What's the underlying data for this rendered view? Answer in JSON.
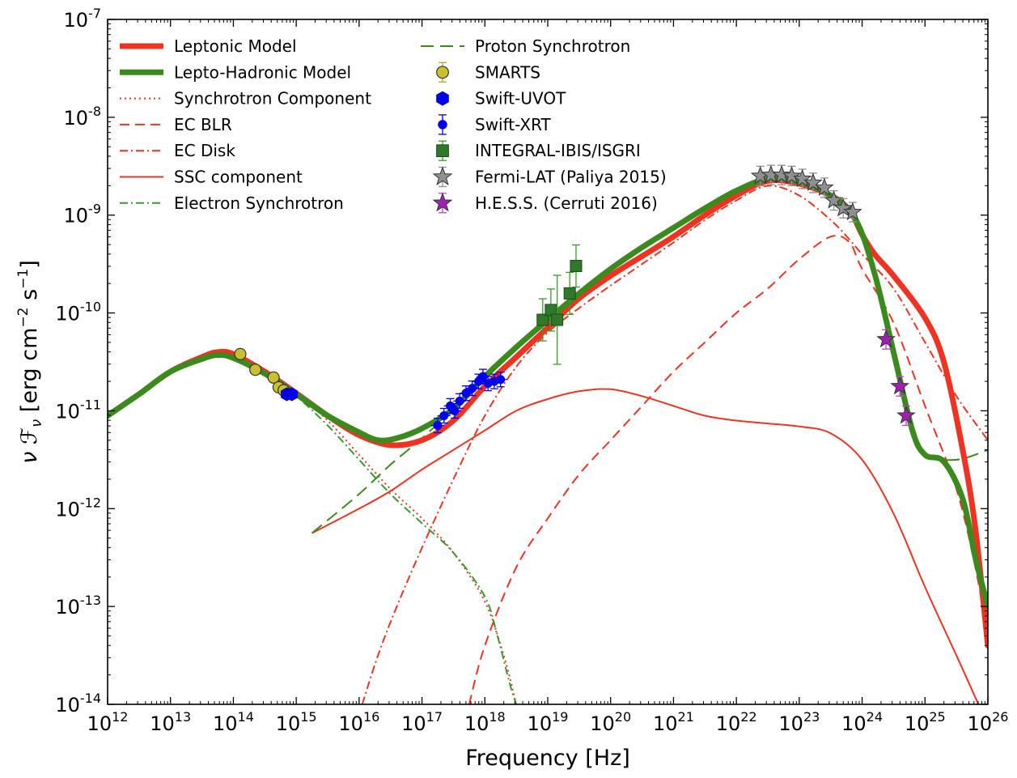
{
  "chart_data": {
    "type": "line",
    "title": "",
    "xlabel": "Frequency [Hz]",
    "ylabel": "ν ℱ_ν [erg cm⁻² s⁻¹]",
    "ylabel_parts": {
      "prefix": "ν ℱ",
      "sub": "ν",
      "unit_open": " [erg cm",
      "exp1": "−2",
      "unit_mid": " s",
      "exp2": "−1",
      "unit_close": "]"
    },
    "xscale": "log",
    "yscale": "log",
    "xlim_log10": [
      12,
      26
    ],
    "ylim_log10": [
      -14,
      -7
    ],
    "x_ticks": [
      12,
      13,
      14,
      15,
      16,
      17,
      18,
      19,
      20,
      21,
      22,
      23,
      24,
      25,
      26
    ],
    "y_ticks": [
      -14,
      -13,
      -12,
      -11,
      -10,
      -9,
      -8,
      -7
    ],
    "grid": false,
    "legend": {
      "location": "upper-left",
      "columns": [
        [
          "Leptonic Model",
          "Lepto-Hadronic Model",
          "Synchrotron Component",
          "EC BLR",
          "EC Disk",
          "SSC component",
          "Electron Synchrotron"
        ],
        [
          "Proton Synchrotron",
          "SMARTS",
          "Swift-UVOT",
          "Swift-XRT",
          "INTEGRAL-IBIS/ISGRI",
          "Fermi-LAT (Paliya 2015)",
          "H.E.S.S. (Cerruti 2016)"
        ]
      ]
    },
    "series": [
      {
        "name": "Leptonic Model",
        "color": "#ee3322",
        "style": "solid",
        "width": 7,
        "points": [
          [
            12,
            -11.05
          ],
          [
            12.5,
            -10.83
          ],
          [
            13,
            -10.6
          ],
          [
            13.5,
            -10.45
          ],
          [
            13.75,
            -10.4
          ],
          [
            14,
            -10.42
          ],
          [
            14.5,
            -10.6
          ],
          [
            15,
            -10.82
          ],
          [
            15.5,
            -11.05
          ],
          [
            16,
            -11.25
          ],
          [
            16.5,
            -11.35
          ],
          [
            17,
            -11.3
          ],
          [
            17.5,
            -11.1
          ],
          [
            18,
            -10.75
          ],
          [
            18.5,
            -10.45
          ],
          [
            19,
            -10.15
          ],
          [
            19.5,
            -9.85
          ],
          [
            20,
            -9.62
          ],
          [
            20.5,
            -9.42
          ],
          [
            21,
            -9.22
          ],
          [
            21.5,
            -9.0
          ],
          [
            22,
            -8.8
          ],
          [
            22.5,
            -8.65
          ],
          [
            23,
            -8.68
          ],
          [
            23.5,
            -8.8
          ],
          [
            23.8,
            -8.95
          ],
          [
            24,
            -9.2
          ],
          [
            24.2,
            -9.4
          ],
          [
            24.5,
            -9.62
          ],
          [
            25,
            -10.05
          ],
          [
            25.3,
            -10.5
          ],
          [
            25.6,
            -11.4
          ],
          [
            25.8,
            -12.2
          ],
          [
            26,
            -13.4
          ]
        ]
      },
      {
        "name": "Lepto-Hadronic Model",
        "color": "#3a8a1e",
        "style": "solid",
        "width": 7,
        "points": [
          [
            12,
            -11.05
          ],
          [
            12.5,
            -10.83
          ],
          [
            13,
            -10.6
          ],
          [
            13.5,
            -10.47
          ],
          [
            13.75,
            -10.43
          ],
          [
            14,
            -10.46
          ],
          [
            14.5,
            -10.62
          ],
          [
            15,
            -10.83
          ],
          [
            15.5,
            -11.05
          ],
          [
            16,
            -11.22
          ],
          [
            16.3,
            -11.3
          ],
          [
            16.6,
            -11.28
          ],
          [
            17,
            -11.18
          ],
          [
            17.5,
            -10.98
          ],
          [
            18,
            -10.65
          ],
          [
            18.5,
            -10.35
          ],
          [
            19,
            -10.07
          ],
          [
            19.5,
            -9.8
          ],
          [
            20,
            -9.55
          ],
          [
            20.5,
            -9.33
          ],
          [
            21,
            -9.13
          ],
          [
            21.5,
            -8.93
          ],
          [
            22,
            -8.75
          ],
          [
            22.5,
            -8.63
          ],
          [
            23,
            -8.66
          ],
          [
            23.5,
            -8.8
          ],
          [
            23.9,
            -9.05
          ],
          [
            24.2,
            -9.6
          ],
          [
            24.5,
            -10.4
          ],
          [
            24.8,
            -11.2
          ],
          [
            25,
            -11.45
          ],
          [
            25.3,
            -11.52
          ],
          [
            25.6,
            -11.9
          ],
          [
            25.8,
            -12.5
          ],
          [
            26,
            -13.0
          ]
        ]
      },
      {
        "name": "Synchrotron Component",
        "color": "#ee3322",
        "style": "dotted",
        "width": 2,
        "points": [
          [
            12,
            -11.05
          ],
          [
            12.5,
            -10.83
          ],
          [
            13,
            -10.6
          ],
          [
            13.5,
            -10.45
          ],
          [
            13.75,
            -10.4
          ],
          [
            14,
            -10.42
          ],
          [
            14.5,
            -10.6
          ],
          [
            15,
            -10.82
          ],
          [
            15.5,
            -11.1
          ],
          [
            16,
            -11.45
          ],
          [
            16.5,
            -11.8
          ],
          [
            17,
            -12.1
          ],
          [
            17.5,
            -12.45
          ],
          [
            18,
            -12.95
          ],
          [
            18.3,
            -13.5
          ],
          [
            18.5,
            -14.0
          ]
        ]
      },
      {
        "name": "EC BLR",
        "color": "#ee3322",
        "style": "dashed",
        "width": 2,
        "points": [
          [
            17.75,
            -14.0
          ],
          [
            18,
            -13.4
          ],
          [
            18.5,
            -12.6
          ],
          [
            19,
            -12.1
          ],
          [
            19.5,
            -11.65
          ],
          [
            20,
            -11.3
          ],
          [
            20.5,
            -10.95
          ],
          [
            21,
            -10.6
          ],
          [
            21.5,
            -10.3
          ],
          [
            22,
            -10.0
          ],
          [
            22.5,
            -9.75
          ],
          [
            23,
            -9.45
          ],
          [
            23.5,
            -9.22
          ],
          [
            23.8,
            -9.28
          ],
          [
            24,
            -9.55
          ],
          [
            24.5,
            -10.1
          ],
          [
            25,
            -10.95
          ],
          [
            25.5,
            -11.8
          ],
          [
            25.8,
            -12.6
          ],
          [
            26,
            -13.3
          ]
        ]
      },
      {
        "name": "EC Disk",
        "color": "#ee3322",
        "style": "dashdot",
        "width": 2,
        "points": [
          [
            16.05,
            -14.0
          ],
          [
            16.3,
            -13.5
          ],
          [
            16.6,
            -13.0
          ],
          [
            17,
            -12.4
          ],
          [
            17.5,
            -11.7
          ],
          [
            18,
            -11.05
          ],
          [
            18.5,
            -10.55
          ],
          [
            19,
            -10.2
          ],
          [
            19.5,
            -9.95
          ],
          [
            20,
            -9.72
          ],
          [
            20.5,
            -9.5
          ],
          [
            21,
            -9.28
          ],
          [
            21.5,
            -9.05
          ],
          [
            22,
            -8.85
          ],
          [
            22.5,
            -8.7
          ],
          [
            23,
            -8.8
          ],
          [
            23.5,
            -9.05
          ],
          [
            23.8,
            -9.25
          ],
          [
            24,
            -9.4
          ],
          [
            24.5,
            -9.75
          ],
          [
            25,
            -10.3
          ],
          [
            25.5,
            -10.85
          ],
          [
            26,
            -11.3
          ]
        ]
      },
      {
        "name": "SSC component",
        "color": "#ee3322",
        "style": "solid",
        "width": 2,
        "points": [
          [
            15.25,
            -12.25
          ],
          [
            16,
            -12.0
          ],
          [
            16.5,
            -11.82
          ],
          [
            17,
            -11.6
          ],
          [
            17.5,
            -11.4
          ],
          [
            18,
            -11.2
          ],
          [
            18.5,
            -11.0
          ],
          [
            19,
            -10.88
          ],
          [
            19.5,
            -10.8
          ],
          [
            20,
            -10.78
          ],
          [
            20.5,
            -10.85
          ],
          [
            21,
            -10.95
          ],
          [
            21.5,
            -11.05
          ],
          [
            22,
            -11.1
          ],
          [
            22.5,
            -11.13
          ],
          [
            23,
            -11.16
          ],
          [
            23.5,
            -11.23
          ],
          [
            24,
            -11.5
          ],
          [
            24.5,
            -12.05
          ],
          [
            25,
            -12.8
          ],
          [
            25.5,
            -13.5
          ],
          [
            25.85,
            -14.0
          ]
        ]
      },
      {
        "name": "Electron Synchrotron",
        "color": "#3a9a2e",
        "style": "dashdot",
        "width": 2,
        "points": [
          [
            12,
            -11.05
          ],
          [
            12.5,
            -10.83
          ],
          [
            13,
            -10.6
          ],
          [
            13.5,
            -10.47
          ],
          [
            13.75,
            -10.43
          ],
          [
            14,
            -10.46
          ],
          [
            14.5,
            -10.62
          ],
          [
            15,
            -10.85
          ],
          [
            15.5,
            -11.15
          ],
          [
            16,
            -11.5
          ],
          [
            16.5,
            -11.85
          ],
          [
            17,
            -12.15
          ],
          [
            17.5,
            -12.45
          ],
          [
            18,
            -12.9
          ],
          [
            18.2,
            -13.3
          ],
          [
            18.4,
            -13.8
          ],
          [
            18.5,
            -14.0
          ]
        ]
      },
      {
        "name": "Proton Synchrotron",
        "color": "#3a8a1e",
        "style": "longdash",
        "width": 2,
        "points": [
          [
            15.25,
            -12.25
          ],
          [
            16,
            -11.85
          ],
          [
            16.5,
            -11.55
          ],
          [
            17,
            -11.28
          ],
          [
            17.5,
            -10.98
          ],
          [
            18,
            -10.65
          ],
          [
            18.5,
            -10.35
          ],
          [
            19,
            -10.07
          ],
          [
            19.5,
            -9.8
          ],
          [
            20,
            -9.55
          ],
          [
            20.5,
            -9.33
          ],
          [
            21,
            -9.13
          ],
          [
            21.5,
            -8.93
          ],
          [
            22,
            -8.75
          ],
          [
            22.5,
            -8.63
          ],
          [
            23,
            -8.66
          ],
          [
            23.5,
            -8.8
          ],
          [
            23.9,
            -9.05
          ],
          [
            24.2,
            -9.6
          ],
          [
            24.5,
            -10.4
          ],
          [
            24.8,
            -11.2
          ],
          [
            25,
            -11.45
          ],
          [
            25.5,
            -11.5
          ],
          [
            26,
            -11.4
          ]
        ]
      }
    ],
    "data_sets": [
      {
        "name": "SMARTS",
        "marker": "circle",
        "color": "#c8c030",
        "points": [
          [
            14.11,
            -10.42
          ],
          [
            14.35,
            -10.58
          ],
          [
            14.64,
            -10.66
          ],
          [
            14.72,
            -10.76
          ],
          [
            14.8,
            -10.79
          ]
        ]
      },
      {
        "name": "Swift-UVOT",
        "marker": "hexagon",
        "color": "#0000ee",
        "points": [
          [
            14.85,
            -10.83
          ],
          [
            14.93,
            -10.83
          ]
        ]
      },
      {
        "name": "Swift-XRT",
        "marker": "dot",
        "color": "#0000ee",
        "points": [
          [
            17.25,
            -11.15
          ],
          [
            17.35,
            -11.05
          ],
          [
            17.45,
            -10.95
          ],
          [
            17.52,
            -11.0
          ],
          [
            17.6,
            -10.9
          ],
          [
            17.7,
            -10.82
          ],
          [
            17.8,
            -10.77
          ],
          [
            17.9,
            -10.7
          ],
          [
            17.97,
            -10.65
          ],
          [
            18.05,
            -10.72
          ],
          [
            18.15,
            -10.7
          ],
          [
            18.25,
            -10.68
          ]
        ]
      },
      {
        "name": "INTEGRAL-IBIS/ISGRI",
        "marker": "square",
        "color": "#2f7a2a",
        "points": [
          [
            18.92,
            -10.07
          ],
          [
            19.05,
            -9.97
          ],
          [
            19.15,
            -10.07
          ],
          [
            19.35,
            -9.8
          ],
          [
            19.45,
            -9.52
          ]
        ]
      },
      {
        "name": "Fermi-LAT (Paliya 2015)",
        "marker": "star",
        "color": "#909090",
        "points": [
          [
            22.38,
            -8.6
          ],
          [
            22.55,
            -8.59
          ],
          [
            22.72,
            -8.59
          ],
          [
            22.88,
            -8.6
          ],
          [
            23.05,
            -8.63
          ],
          [
            23.22,
            -8.67
          ],
          [
            23.4,
            -8.72
          ],
          [
            23.55,
            -8.85
          ],
          [
            23.7,
            -8.93
          ],
          [
            23.85,
            -8.97
          ]
        ]
      },
      {
        "name": "H.E.S.S. (Cerruti 2016)",
        "marker": "star",
        "color": "#a020b0",
        "points": [
          [
            24.38,
            -10.27
          ],
          [
            24.6,
            -10.75
          ],
          [
            24.7,
            -11.05
          ]
        ]
      }
    ]
  }
}
